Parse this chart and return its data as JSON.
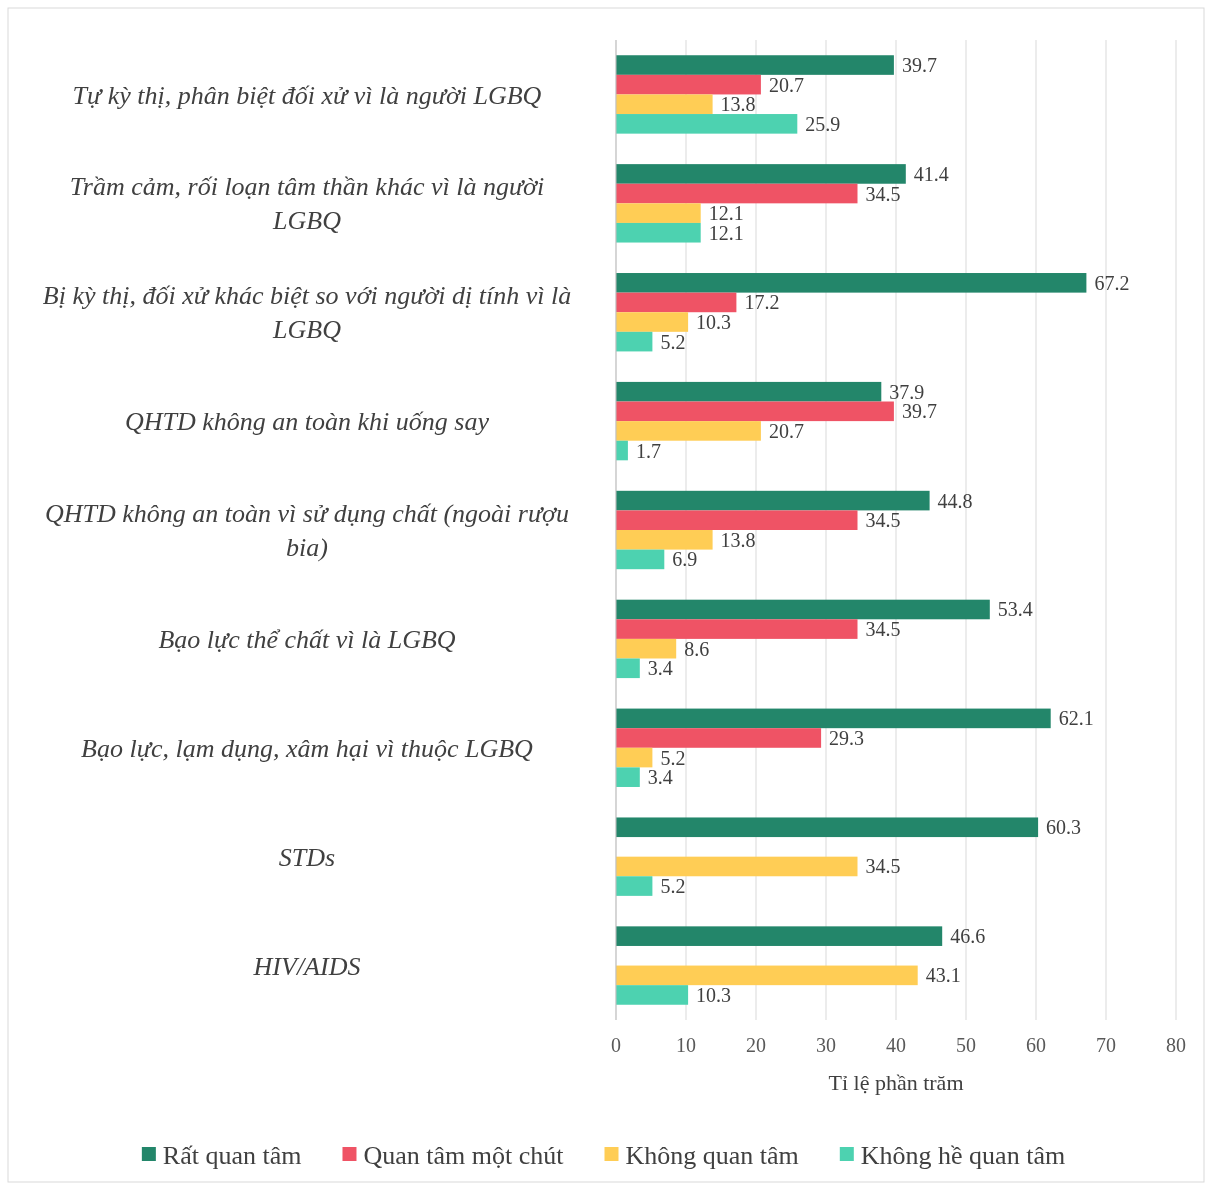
{
  "chart_data": {
    "type": "bar",
    "orientation": "horizontal",
    "xlabel": "Tỉ lệ phần trăm",
    "categories": [
      "Tự kỳ thị, phân biệt đối xử vì là người LGBQ",
      "Trầm cảm, rối loạn tâm thần khác vì là người LGBQ",
      "Bị kỳ thị, đối xử khác biệt so với người dị tính vì là LGBQ",
      "QHTD không an toàn khi uống say",
      "QHTD không an toàn vì sử dụng chất (ngoài rượu bia)",
      "Bạo lực thể chất vì là LGBQ",
      "Bạo lực, lạm dụng, xâm hại vì thuộc LGBQ",
      "STDs",
      "HIV/AIDS"
    ],
    "series": [
      {
        "name": "Rất quan tâm",
        "color": "#23866a",
        "values": [
          39.7,
          41.4,
          67.2,
          37.9,
          44.8,
          53.4,
          62.1,
          60.3,
          46.6
        ]
      },
      {
        "name": "Quan tâm một chút",
        "color": "#ef5365",
        "values": [
          20.7,
          34.5,
          17.2,
          39.7,
          34.5,
          34.5,
          29.3,
          null,
          null
        ]
      },
      {
        "name": "Không quan tâm",
        "color": "#ffcd55",
        "values": [
          13.8,
          12.1,
          10.3,
          20.7,
          13.8,
          8.6,
          5.2,
          34.5,
          43.1
        ]
      },
      {
        "name": "Không hề quan tâm",
        "color": "#4dd2b0",
        "values": [
          25.9,
          12.1,
          5.2,
          1.7,
          6.9,
          3.4,
          3.4,
          5.2,
          10.3
        ]
      }
    ],
    "xlim": [
      0,
      80
    ],
    "xticks": [
      0,
      10,
      20,
      30,
      40,
      50,
      60,
      70,
      80
    ],
    "grid": "x",
    "legend": "bottom",
    "data_labels": true
  }
}
